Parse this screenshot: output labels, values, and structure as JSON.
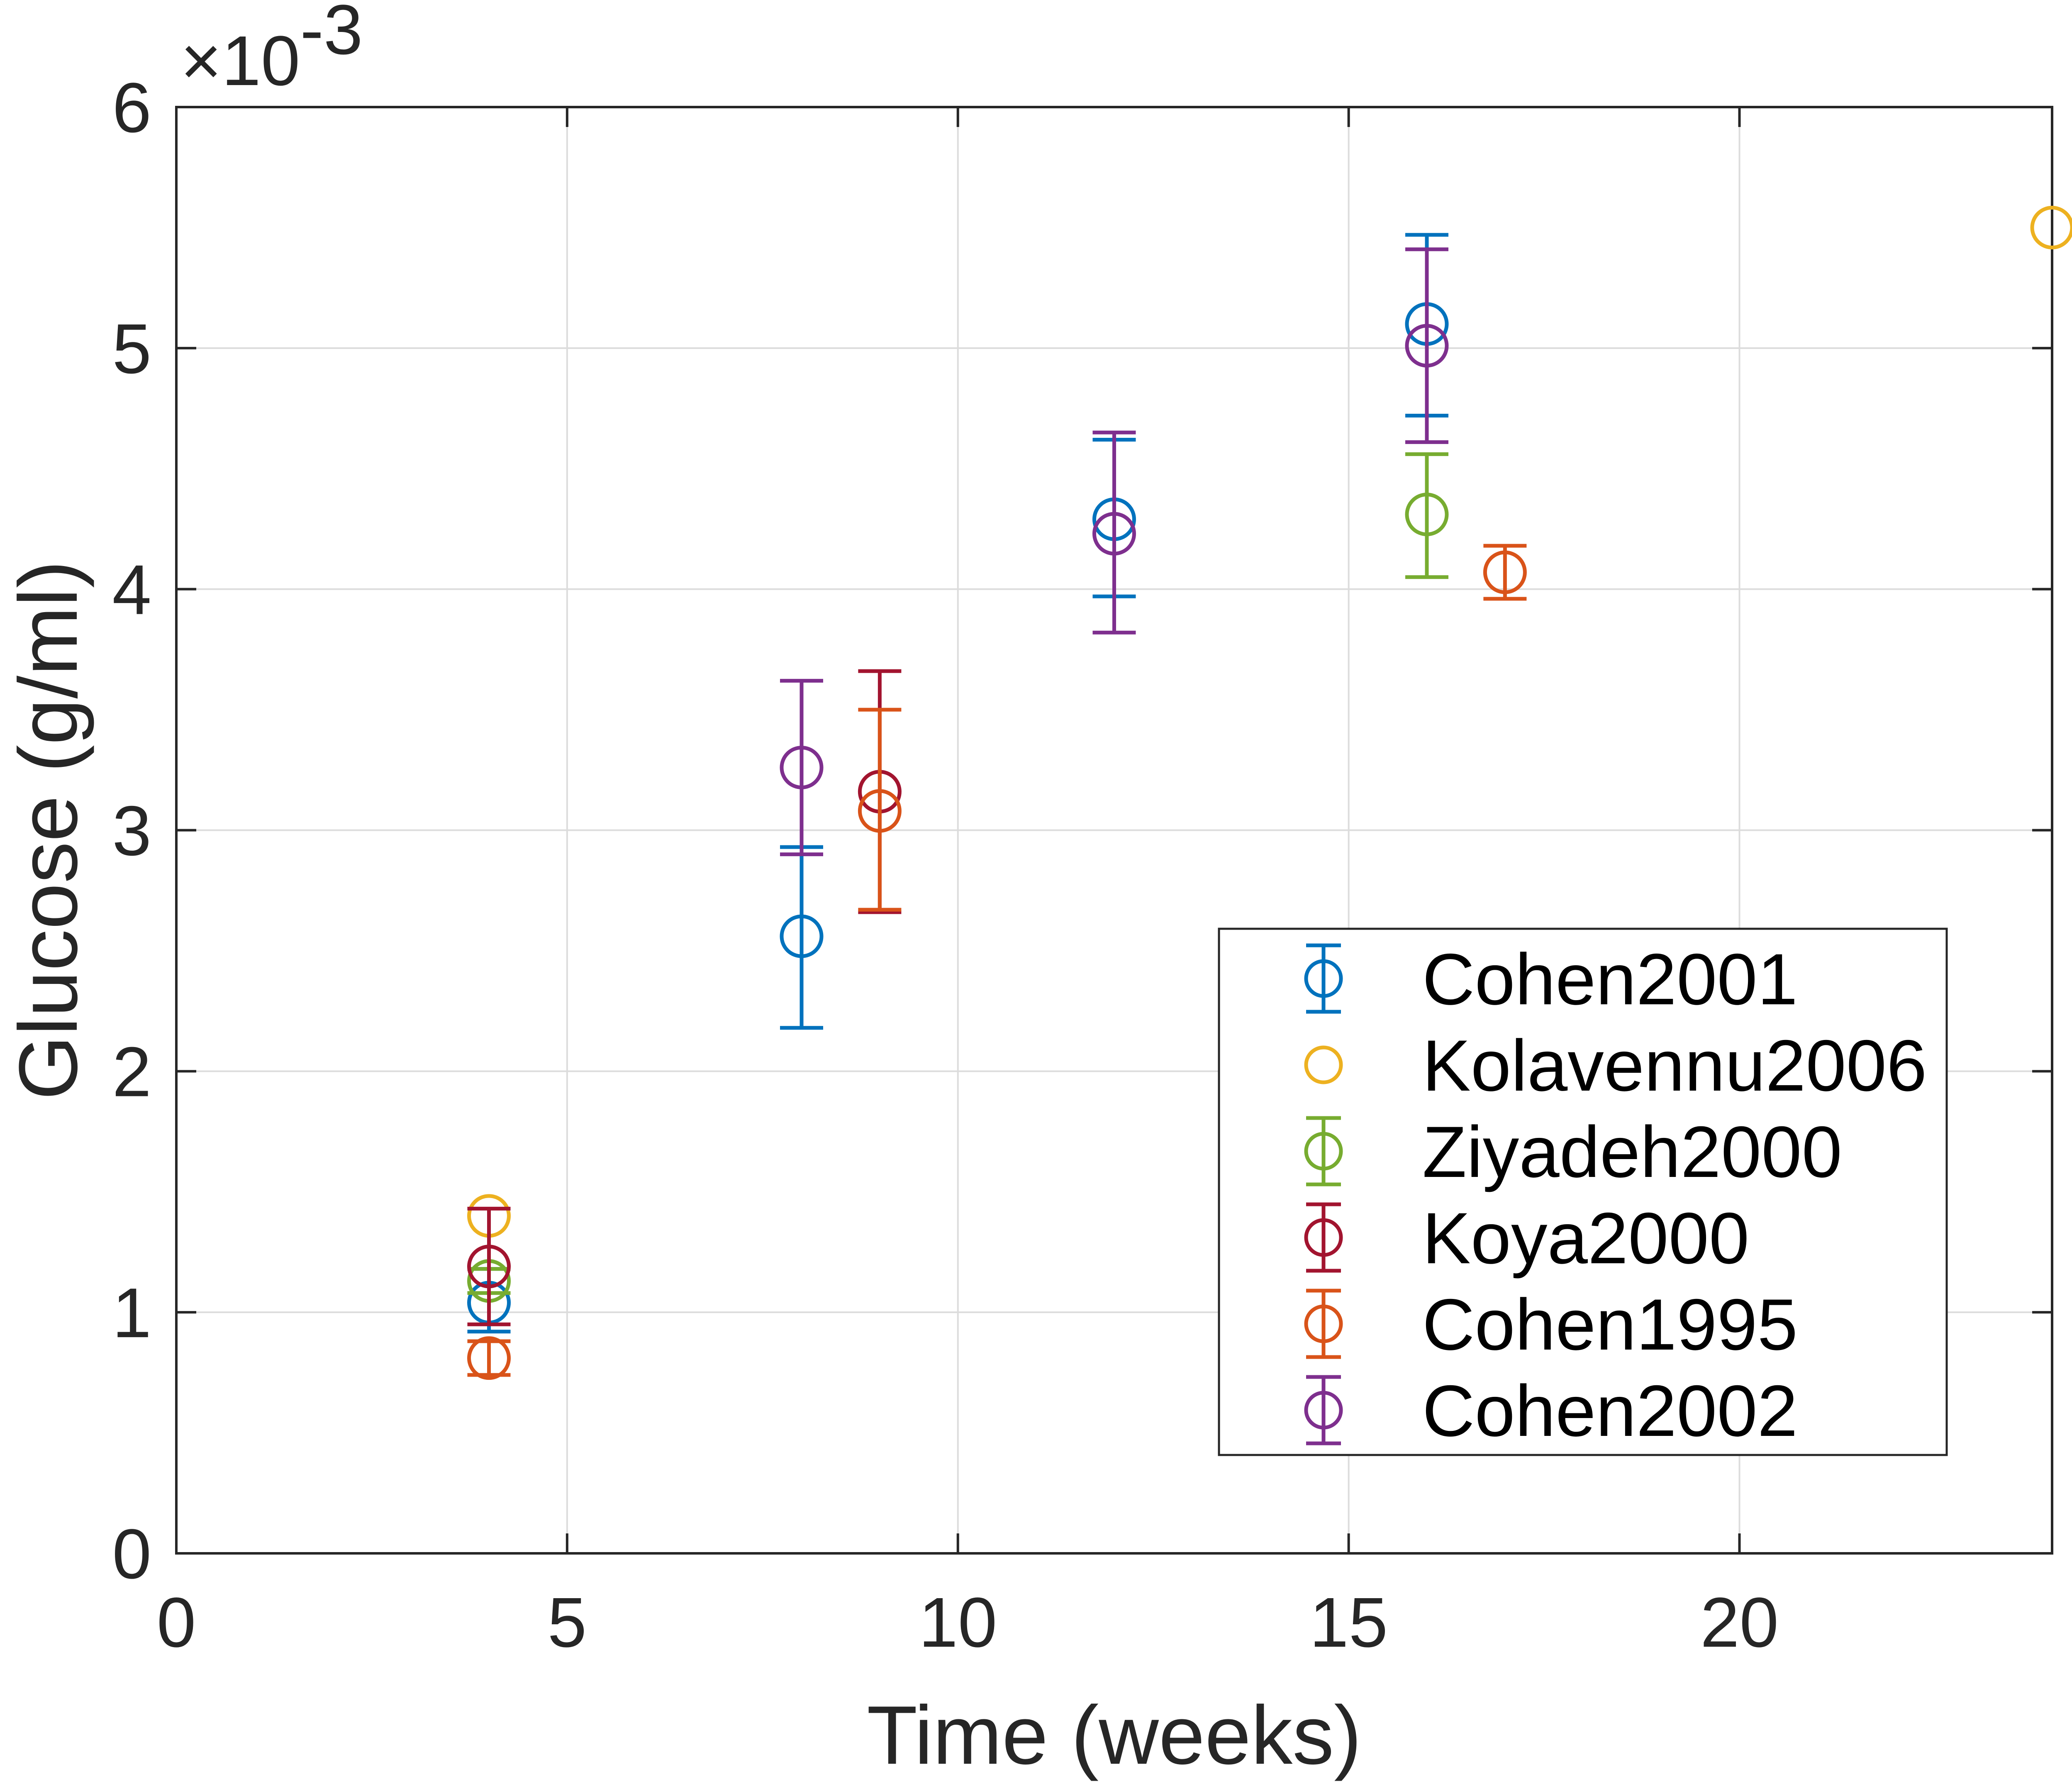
{
  "chart_data": {
    "type": "scatter",
    "subtype": "errorbar",
    "xlabel": "Time (weeks)",
    "ylabel": "Glucose (g/ml)",
    "y_exponent": "×10",
    "y_exponent_power": "-3",
    "xlim": [
      0,
      24
    ],
    "ylim": [
      0,
      6
    ],
    "xticks": [
      "0",
      "5",
      "10",
      "15",
      "20"
    ],
    "xtick_values": [
      0,
      5,
      10,
      15,
      20
    ],
    "yticks": [
      "0",
      "1",
      "2",
      "3",
      "4",
      "5",
      "6"
    ],
    "ytick_values": [
      0,
      1,
      2,
      3,
      4,
      5,
      6
    ],
    "grid": true,
    "legend_position": "lower-right",
    "marker": "open-circle",
    "series": [
      {
        "name": "Cohen2001",
        "color": "#0072BD",
        "error_bars": true,
        "points": [
          {
            "x": 4,
            "y": 1.04,
            "lo": 0.92,
            "hi": 1.18
          },
          {
            "x": 8,
            "y": 2.56,
            "lo": 2.18,
            "hi": 2.93
          },
          {
            "x": 12,
            "y": 4.29,
            "lo": 3.97,
            "hi": 4.62
          },
          {
            "x": 16,
            "y": 5.1,
            "lo": 4.72,
            "hi": 5.47
          }
        ]
      },
      {
        "name": "Kolavennu2006",
        "color": "#EDB120",
        "error_bars": false,
        "points": [
          {
            "x": 4,
            "y": 1.4
          },
          {
            "x": 24,
            "y": 5.5
          }
        ]
      },
      {
        "name": "Ziyadeh2000",
        "color": "#77AC30",
        "error_bars": true,
        "points": [
          {
            "x": 4,
            "y": 1.13,
            "lo": 1.08,
            "hi": 1.18
          },
          {
            "x": 16,
            "y": 4.31,
            "lo": 4.05,
            "hi": 4.56
          }
        ]
      },
      {
        "name": "Koya2000",
        "color": "#A2142F",
        "error_bars": true,
        "points": [
          {
            "x": 4,
            "y": 1.19,
            "lo": 0.95,
            "hi": 1.43
          },
          {
            "x": 9,
            "y": 3.16,
            "lo": 2.66,
            "hi": 3.66
          }
        ]
      },
      {
        "name": "Cohen1995",
        "color": "#D95319",
        "error_bars": true,
        "points": [
          {
            "x": 4,
            "y": 0.81,
            "lo": 0.74,
            "hi": 0.88
          },
          {
            "x": 9,
            "y": 3.08,
            "lo": 2.67,
            "hi": 3.5
          },
          {
            "x": 17,
            "y": 4.07,
            "lo": 3.96,
            "hi": 4.18
          }
        ]
      },
      {
        "name": "Cohen2002",
        "color": "#7E2F8E",
        "error_bars": true,
        "points": [
          {
            "x": 8,
            "y": 3.26,
            "lo": 2.9,
            "hi": 3.62
          },
          {
            "x": 12,
            "y": 4.23,
            "lo": 3.82,
            "hi": 4.65
          },
          {
            "x": 16,
            "y": 5.01,
            "lo": 4.61,
            "hi": 5.41
          }
        ]
      }
    ]
  }
}
